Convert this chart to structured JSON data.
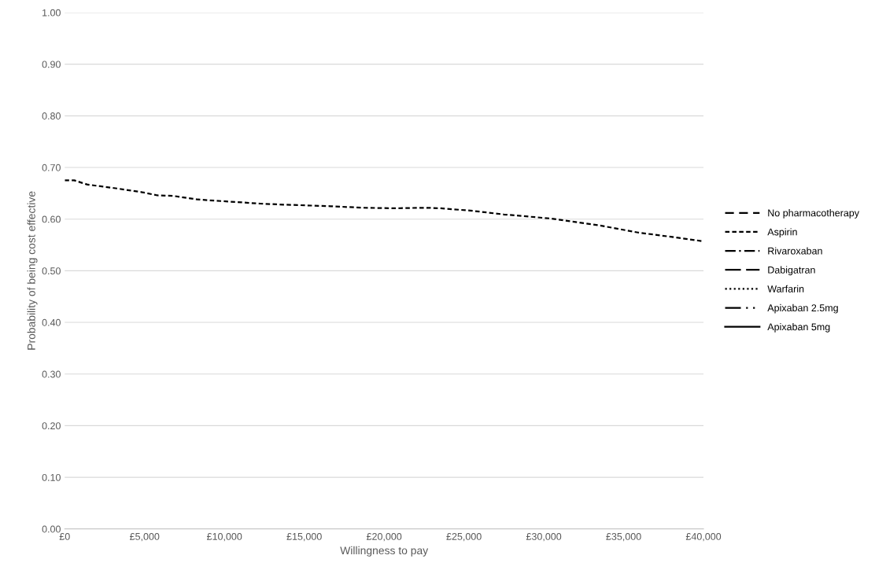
{
  "chart_data": {
    "type": "line",
    "xlabel": "Willingness to pay",
    "ylabel": "Probability of being cost effective",
    "xlim": [
      0,
      40000
    ],
    "xticks": [
      {
        "value": 0,
        "label": "£0"
      },
      {
        "value": 5000,
        "label": "£5,000"
      },
      {
        "value": 10000,
        "label": "£10,000"
      },
      {
        "value": 15000,
        "label": "£15,000"
      },
      {
        "value": 20000,
        "label": "£20,000"
      },
      {
        "value": 25000,
        "label": "£25,000"
      },
      {
        "value": 30000,
        "label": "£30,000"
      },
      {
        "value": 35000,
        "label": "£35,000"
      },
      {
        "value": 40000,
        "label": "£40,000"
      }
    ],
    "ylim": [
      0,
      1
    ],
    "yticks": [
      {
        "value": 0,
        "label": "0.00"
      },
      {
        "value": 0.1,
        "label": "0.10"
      },
      {
        "value": 0.2,
        "label": "0.20"
      },
      {
        "value": 0.3,
        "label": "0.30"
      },
      {
        "value": 0.4,
        "label": "0.40"
      },
      {
        "value": 0.5,
        "label": "0.50"
      },
      {
        "value": 0.6,
        "label": "0.60"
      },
      {
        "value": 0.7,
        "label": "0.70"
      },
      {
        "value": 0.8,
        "label": "0.80"
      },
      {
        "value": 0.9,
        "label": "0.90"
      },
      {
        "value": 1,
        "label": "1.00"
      }
    ],
    "grid": "y",
    "legend": "right",
    "marker": "none",
    "x": [
      0,
      600,
      1400,
      3350,
      4850,
      5800,
      6800,
      8300,
      10250,
      12250,
      13700,
      16650,
      18650,
      20600,
      22600,
      23550,
      25550,
      27500,
      30500,
      33450,
      35900,
      38400,
      40000
    ],
    "series": [
      {
        "name": "No pharmacotherapy",
        "color": "#000000",
        "line_style": "dashed",
        "values": [
          null,
          null,
          null,
          null,
          null,
          null,
          null,
          null,
          null,
          null,
          null,
          null,
          null,
          null,
          null,
          null,
          null,
          null,
          null,
          null,
          null,
          null,
          null
        ]
      },
      {
        "name": "Aspirin",
        "color": "#000000",
        "line_style": "shortdash",
        "values": [
          0.675,
          0.675,
          0.667,
          0.659,
          0.652,
          0.646,
          0.645,
          0.638,
          0.634,
          0.63,
          0.628,
          0.625,
          0.622,
          0.621,
          0.622,
          0.621,
          0.616,
          0.609,
          0.601,
          0.588,
          0.574,
          0.564,
          0.557
        ]
      },
      {
        "name": "Rivaroxaban",
        "color": "#000000",
        "line_style": "dashdot",
        "values": [
          null,
          null,
          null,
          null,
          null,
          null,
          null,
          null,
          null,
          null,
          null,
          null,
          null,
          null,
          null,
          null,
          null,
          null,
          null,
          null,
          null,
          null,
          null
        ]
      },
      {
        "name": "Dabigatran",
        "color": "#000000",
        "line_style": "longdash",
        "values": [
          null,
          null,
          null,
          null,
          null,
          null,
          null,
          null,
          null,
          null,
          null,
          null,
          null,
          null,
          null,
          null,
          null,
          null,
          null,
          null,
          null,
          null,
          null
        ]
      },
      {
        "name": "Warfarin",
        "color": "#000000",
        "line_style": "dotted",
        "values": [
          null,
          null,
          null,
          null,
          null,
          null,
          null,
          null,
          null,
          null,
          null,
          null,
          null,
          null,
          null,
          null,
          null,
          null,
          null,
          null,
          null,
          null,
          null
        ]
      },
      {
        "name": "Apixaban 2.5mg",
        "color": "#000000",
        "line_style": "longdashdotdot",
        "values": [
          null,
          null,
          null,
          null,
          null,
          null,
          null,
          null,
          null,
          null,
          null,
          null,
          null,
          null,
          null,
          null,
          null,
          null,
          null,
          null,
          null,
          null,
          null
        ]
      },
      {
        "name": "Apixaban 5mg",
        "color": "#000000",
        "line_style": "solid",
        "values": [
          null,
          null,
          null,
          null,
          null,
          null,
          null,
          null,
          null,
          null,
          null,
          null,
          null,
          null,
          null,
          null,
          null,
          null,
          null,
          null,
          null,
          null,
          null
        ]
      }
    ]
  }
}
